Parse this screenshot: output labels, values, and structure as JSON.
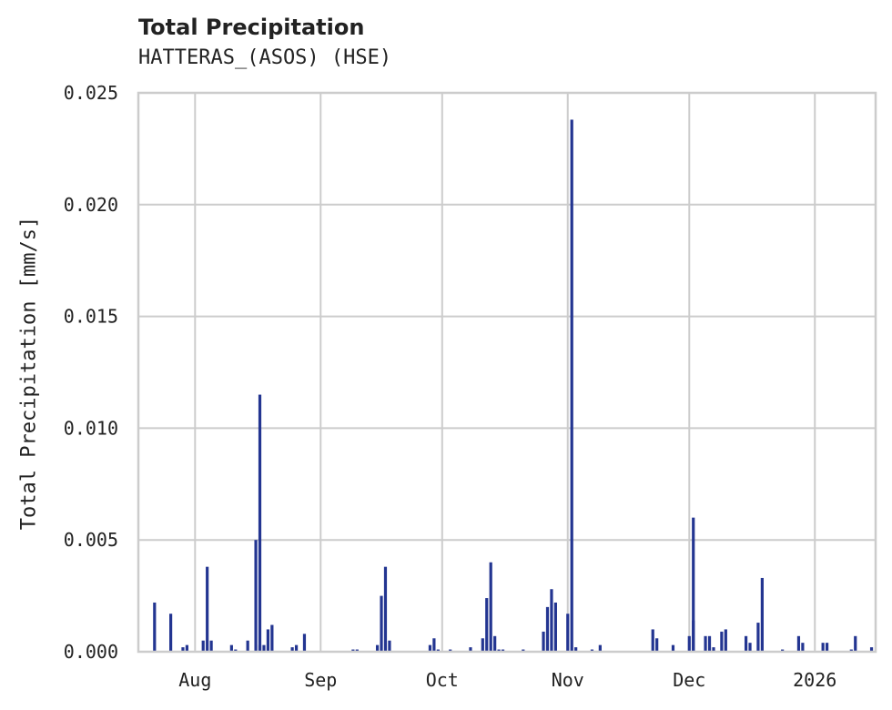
{
  "title": "Total Precipitation",
  "subtitle": "HATTERAS_(ASOS) (HSE)",
  "colors": {
    "bar": "#233591",
    "grid": "#cccccc",
    "text": "#222222",
    "background": "#ffffff"
  },
  "chart_data": {
    "type": "bar",
    "title": "Total Precipitation",
    "subtitle": "HATTERAS_(ASOS) (HSE)",
    "xlabel": "",
    "ylabel": "Total Precipitation [mm/s]",
    "ylim": [
      0,
      0.025
    ],
    "yticks": [
      "0.000",
      "0.005",
      "0.010",
      "0.015",
      "0.020",
      "0.025"
    ],
    "xticks": [
      "Aug",
      "Sep",
      "Oct",
      "Nov",
      "Dec",
      "2026"
    ],
    "xrange": [
      "2025-07-18",
      "2026-01-16"
    ],
    "grid": true,
    "legend": null,
    "series": [
      {
        "name": "Total Precipitation",
        "points": [
          [
            "2025-07-22",
            0.0022
          ],
          [
            "2025-07-26",
            0.0017
          ],
          [
            "2025-07-29",
            0.0002
          ],
          [
            "2025-07-30",
            0.0003
          ],
          [
            "2025-08-03",
            0.0005
          ],
          [
            "2025-08-04",
            0.0038
          ],
          [
            "2025-08-05",
            0.0005
          ],
          [
            "2025-08-10",
            0.0003
          ],
          [
            "2025-08-11",
            0.0001
          ],
          [
            "2025-08-14",
            0.0005
          ],
          [
            "2025-08-16",
            0.005
          ],
          [
            "2025-08-17",
            0.0003
          ],
          [
            "2025-08-17",
            0.0115
          ],
          [
            "2025-08-18",
            0.0003
          ],
          [
            "2025-08-19",
            0.001
          ],
          [
            "2025-08-20",
            0.0012
          ],
          [
            "2025-08-25",
            0.0002
          ],
          [
            "2025-08-26",
            0.0003
          ],
          [
            "2025-08-28",
            0.0008
          ],
          [
            "2025-09-09",
            0.0001
          ],
          [
            "2025-09-10",
            0.0001
          ],
          [
            "2025-09-15",
            0.0003
          ],
          [
            "2025-09-16",
            0.0025
          ],
          [
            "2025-09-17",
            0.0038
          ],
          [
            "2025-09-18",
            0.0005
          ],
          [
            "2025-09-28",
            0.0003
          ],
          [
            "2025-09-29",
            0.0006
          ],
          [
            "2025-09-30",
            0.0001
          ],
          [
            "2025-10-03",
            0.0001
          ],
          [
            "2025-10-08",
            0.0002
          ],
          [
            "2025-10-11",
            0.0006
          ],
          [
            "2025-10-12",
            0.0024
          ],
          [
            "2025-10-13",
            0.004
          ],
          [
            "2025-10-14",
            0.0007
          ],
          [
            "2025-10-15",
            0.0001
          ],
          [
            "2025-10-16",
            0.0001
          ],
          [
            "2025-10-21",
            0.0001
          ],
          [
            "2025-10-26",
            0.0009
          ],
          [
            "2025-10-27",
            0.002
          ],
          [
            "2025-10-28",
            0.0028
          ],
          [
            "2025-10-29",
            0.0022
          ],
          [
            "2025-11-01",
            0.0017
          ],
          [
            "2025-11-02",
            0.0238
          ],
          [
            "2025-11-03",
            0.0002
          ],
          [
            "2025-11-07",
            0.0001
          ],
          [
            "2025-11-09",
            0.0003
          ],
          [
            "2025-11-22",
            0.001
          ],
          [
            "2025-11-23",
            0.0006
          ],
          [
            "2025-11-27",
            0.0003
          ],
          [
            "2025-12-01",
            0.0007
          ],
          [
            "2025-12-02",
            0.0014
          ],
          [
            "2025-12-02",
            0.006
          ],
          [
            "2025-12-05",
            0.0007
          ],
          [
            "2025-12-06",
            0.0007
          ],
          [
            "2025-12-07",
            0.0002
          ],
          [
            "2025-12-09",
            0.0009
          ],
          [
            "2025-12-10",
            0.001
          ],
          [
            "2025-12-15",
            0.0007
          ],
          [
            "2025-12-16",
            0.0004
          ],
          [
            "2025-12-18",
            0.0013
          ],
          [
            "2025-12-19",
            0.0033
          ],
          [
            "2025-12-24",
            0.0001
          ],
          [
            "2025-12-28",
            0.0007
          ],
          [
            "2025-12-29",
            0.0004
          ],
          [
            "2026-01-03",
            0.0004
          ],
          [
            "2026-01-04",
            0.0004
          ],
          [
            "2026-01-10",
            0.0001
          ],
          [
            "2026-01-11",
            0.0007
          ],
          [
            "2026-01-15",
            0.0002
          ]
        ]
      }
    ]
  }
}
